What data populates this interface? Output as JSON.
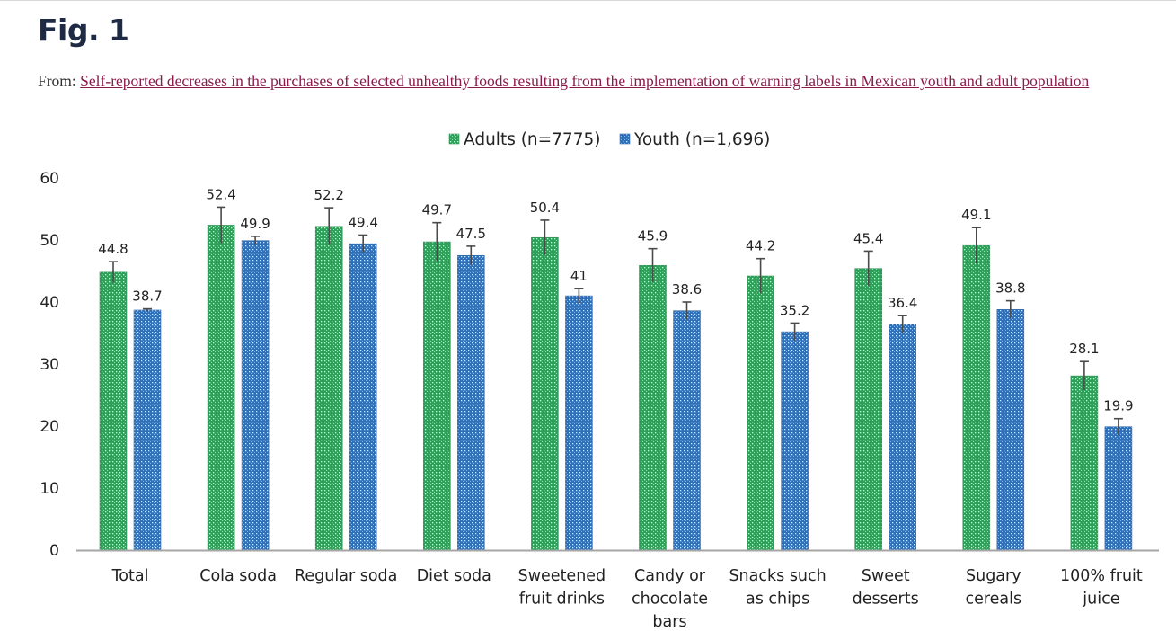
{
  "page": {
    "figure_title": "Fig. 1",
    "from_prefix": "From: ",
    "from_link_text": "Self-reported decreases in the purchases of selected unhealthy foods resulting from the implementation of warning labels in Mexican youth and adult population"
  },
  "colors": {
    "adults": "#2ea05a",
    "youth": "#2f6fb6",
    "link": "#8a1c4a",
    "title": "#1f2a44",
    "axis": "#a6a6a6",
    "error_bar": "#4a4a4a"
  },
  "chart_data": {
    "type": "bar",
    "title": "",
    "xlabel": "",
    "ylabel": "",
    "ylim": [
      0,
      60
    ],
    "yticks": [
      0,
      10,
      20,
      30,
      40,
      50,
      60
    ],
    "grid": false,
    "legend_position": "top-center",
    "categories": [
      [
        "Total"
      ],
      [
        "Cola soda"
      ],
      [
        "Regular soda"
      ],
      [
        "Diet soda"
      ],
      [
        "Sweetened",
        "fruit drinks"
      ],
      [
        "Candy or",
        "chocolate",
        "bars"
      ],
      [
        "Snacks such",
        "as chips"
      ],
      [
        "Sweet",
        "desserts"
      ],
      [
        "Sugary",
        "cereals"
      ],
      [
        "100% fruit",
        "juice"
      ]
    ],
    "series": [
      {
        "name": "Adults (n=7775)",
        "key": "adults",
        "values": [
          44.8,
          52.4,
          52.2,
          49.7,
          50.4,
          45.9,
          44.2,
          45.4,
          49.1,
          28.1
        ],
        "labels": [
          "44.8",
          "52.4",
          "52.2",
          "49.7",
          "50.4",
          "45.9",
          "44.2",
          "45.4",
          "49.1",
          "28.1"
        ],
        "error_upper": [
          46.5,
          55.3,
          55.2,
          52.8,
          53.2,
          48.6,
          47.0,
          48.2,
          52.0,
          30.4
        ]
      },
      {
        "name": "Youth (n=1,696)",
        "key": "youth",
        "values": [
          38.7,
          49.9,
          49.4,
          47.5,
          41,
          38.6,
          35.2,
          36.4,
          38.8,
          19.9
        ],
        "labels": [
          "38.7",
          "49.9",
          "49.4",
          "47.5",
          "41",
          "38.6",
          "35.2",
          "36.4",
          "38.8",
          "19.9"
        ],
        "error_upper": [
          38.9,
          50.6,
          50.8,
          49.0,
          42.2,
          40.0,
          36.6,
          37.8,
          40.2,
          21.2
        ]
      }
    ]
  }
}
